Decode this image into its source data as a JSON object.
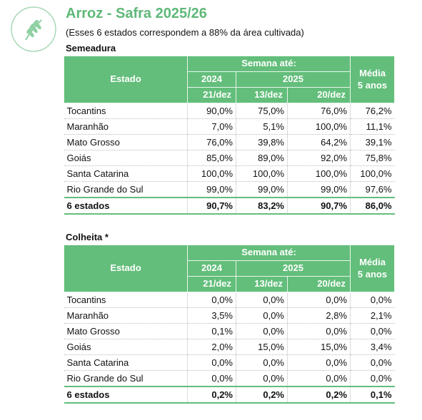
{
  "header": {
    "title": "Arroz - Safra 2025/26",
    "subtitle": "(Esses 6 estados correspondem a 88% da área cultivada)"
  },
  "tables": [
    {
      "title": "Semeadura",
      "columns": {
        "estado": "Estado",
        "semana": "Semana até:",
        "years": [
          "2024",
          "2025"
        ],
        "weeks": [
          "21/dez",
          "13/dez",
          "20/dez"
        ],
        "media": "Média 5 anos"
      },
      "rows": [
        [
          "Tocantins",
          "90,0%",
          "75,0%",
          "76,0%",
          "76,2%"
        ],
        [
          "Maranhão",
          "7,0%",
          "5,1%",
          "100,0%",
          "11,1%"
        ],
        [
          "Mato Grosso",
          "76,0%",
          "39,8%",
          "64,2%",
          "39,1%"
        ],
        [
          "Goiás",
          "85,0%",
          "89,0%",
          "92,0%",
          "75,8%"
        ],
        [
          "Santa Catarina",
          "100,0%",
          "100,0%",
          "100,0%",
          "100,0%"
        ],
        [
          "Rio Grande do Sul",
          "99,0%",
          "99,0%",
          "99,0%",
          "97,6%"
        ]
      ],
      "total": [
        "6 estados",
        "90,7%",
        "83,2%",
        "90,7%",
        "86,0%"
      ]
    },
    {
      "title": "Colheita *",
      "columns": {
        "estado": "Estado",
        "semana": "Semana até:",
        "years": [
          "2024",
          "2025"
        ],
        "weeks": [
          "21/dez",
          "13/dez",
          "20/dez"
        ],
        "media": "Média 5 anos"
      },
      "rows": [
        [
          "Tocantins",
          "0,0%",
          "0,0%",
          "0,0%",
          "0,0%"
        ],
        [
          "Maranhão",
          "3,5%",
          "0,0%",
          "2,8%",
          "2,1%"
        ],
        [
          "Mato Grosso",
          "0,1%",
          "0,0%",
          "0,0%",
          "0,0%"
        ],
        [
          "Goiás",
          "2,0%",
          "15,0%",
          "15,0%",
          "3,4%"
        ],
        [
          "Santa Catarina",
          "0,0%",
          "0,0%",
          "0,0%",
          "0,0%"
        ],
        [
          "Rio Grande do Sul",
          "0,0%",
          "0,0%",
          "0,0%",
          "0,0%"
        ]
      ],
      "total": [
        "6 estados",
        "0,2%",
        "0,2%",
        "0,2%",
        "0,1%"
      ]
    }
  ]
}
